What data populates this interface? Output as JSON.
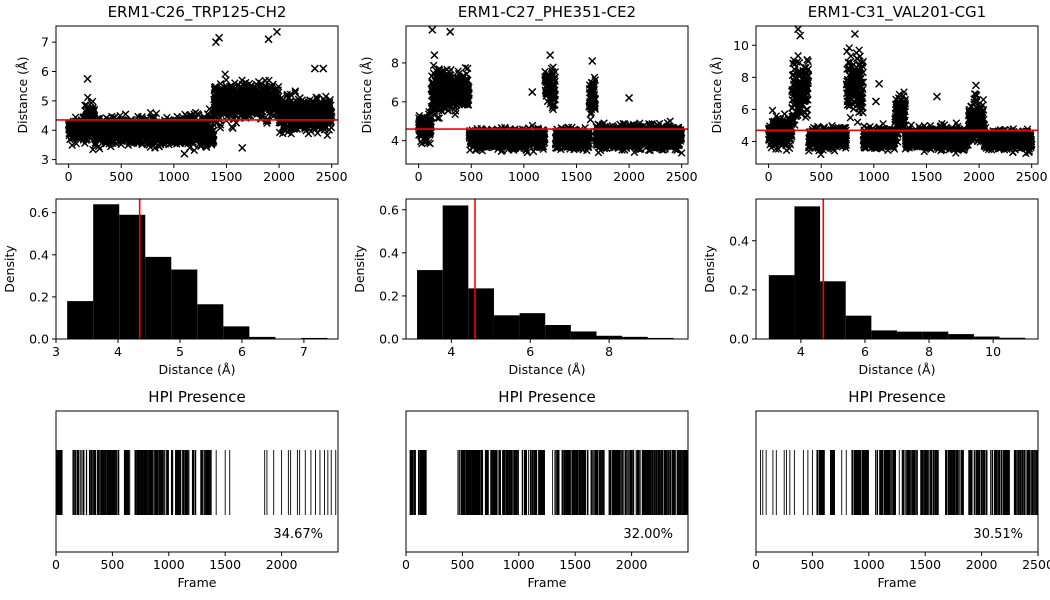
{
  "chart_data": [
    {
      "type": "scatter",
      "title": "ERM1-C26_TRP125-CH2",
      "xlabel": "",
      "ylabel": "Distance (Å)",
      "xlim": [
        -120,
        2560
      ],
      "ylim": [
        2.85,
        7.55
      ],
      "xticks": [
        "0",
        "500",
        "1000",
        "1500",
        "2000",
        "2500"
      ],
      "yticks": [
        "3",
        "4",
        "5",
        "6",
        "7"
      ],
      "marker": "x",
      "marker_color": "#000000",
      "threshold": 4.35,
      "threshold_color": "#ff0000",
      "segments": [
        {
          "x": [
            0,
            150
          ],
          "mean": 4.0,
          "spread": 0.35
        },
        {
          "x": [
            150,
            250
          ],
          "mean": 4.3,
          "spread": 0.6
        },
        {
          "x": [
            250,
            1000
          ],
          "mean": 3.95,
          "spread": 0.4
        },
        {
          "x": [
            1000,
            1380
          ],
          "mean": 4.0,
          "spread": 0.45
        },
        {
          "x": [
            1380,
            1600
          ],
          "mean": 4.9,
          "spread": 0.6
        },
        {
          "x": [
            1600,
            2000
          ],
          "mean": 5.0,
          "spread": 0.55
        },
        {
          "x": [
            2000,
            2500
          ],
          "mean": 4.55,
          "spread": 0.5
        }
      ],
      "highlights": [
        [
          180,
          5.75
        ],
        [
          1400,
          7.0
        ],
        [
          1430,
          7.15
        ],
        [
          1980,
          7.35
        ],
        [
          1900,
          7.1
        ],
        [
          2340,
          6.1
        ],
        [
          2420,
          6.1
        ],
        [
          1650,
          3.4
        ],
        [
          1100,
          3.2
        ]
      ]
    },
    {
      "type": "scatter",
      "title": "ERM1-C27_PHE351-CE2",
      "xlabel": "",
      "ylabel": "Distance (Å)",
      "xlim": [
        -120,
        2560
      ],
      "ylim": [
        2.8,
        9.9
      ],
      "xticks": [
        "0",
        "500",
        "1000",
        "1500",
        "2000",
        "2500"
      ],
      "yticks": [
        "4",
        "6",
        "8"
      ],
      "marker": "x",
      "marker_color": "#000000",
      "threshold": 4.6,
      "threshold_color": "#ff0000",
      "segments": [
        {
          "x": [
            0,
            120
          ],
          "mean": 4.6,
          "spread": 0.6
        },
        {
          "x": [
            120,
            250
          ],
          "mean": 6.5,
          "spread": 1.1
        },
        {
          "x": [
            250,
            480
          ],
          "mean": 6.6,
          "spread": 0.9
        },
        {
          "x": [
            480,
            1200
          ],
          "mean": 4.1,
          "spread": 0.45
        },
        {
          "x": [
            1200,
            1300
          ],
          "mean": 6.8,
          "spread": 1.0
        },
        {
          "x": [
            1300,
            1620
          ],
          "mean": 4.1,
          "spread": 0.5
        },
        {
          "x": [
            1620,
            1680
          ],
          "mean": 6.3,
          "spread": 0.9
        },
        {
          "x": [
            1680,
            2500
          ],
          "mean": 4.2,
          "spread": 0.55
        }
      ],
      "highlights": [
        [
          130,
          9.7
        ],
        [
          300,
          9.6
        ],
        [
          150,
          8.4
        ],
        [
          1250,
          8.4
        ],
        [
          1650,
          8.1
        ],
        [
          2000,
          6.2
        ],
        [
          1080,
          6.5
        ]
      ]
    },
    {
      "type": "scatter",
      "title": "ERM1-C31_VAL201-CG1",
      "xlabel": "",
      "ylabel": "Distance (Å)",
      "xlim": [
        -120,
        2560
      ],
      "ylim": [
        2.6,
        11.2
      ],
      "xticks": [
        "0",
        "500",
        "1000",
        "1500",
        "2000",
        "2500"
      ],
      "yticks": [
        "4",
        "6",
        "8",
        "10"
      ],
      "marker": "x",
      "marker_color": "#000000",
      "threshold": 4.7,
      "threshold_color": "#ff0000",
      "segments": [
        {
          "x": [
            0,
            220
          ],
          "mean": 4.6,
          "spread": 0.9
        },
        {
          "x": [
            220,
            380
          ],
          "mean": 7.2,
          "spread": 1.8
        },
        {
          "x": [
            380,
            740
          ],
          "mean": 4.2,
          "spread": 0.6
        },
        {
          "x": [
            740,
            900
          ],
          "mean": 7.6,
          "spread": 1.6
        },
        {
          "x": [
            900,
            1200
          ],
          "mean": 4.2,
          "spread": 0.6
        },
        {
          "x": [
            1200,
            1300
          ],
          "mean": 5.6,
          "spread": 1.1
        },
        {
          "x": [
            1300,
            1900
          ],
          "mean": 4.2,
          "spread": 0.6
        },
        {
          "x": [
            1900,
            2050
          ],
          "mean": 5.3,
          "spread": 1.1
        },
        {
          "x": [
            2050,
            2500
          ],
          "mean": 4.1,
          "spread": 0.55
        }
      ],
      "highlights": [
        [
          280,
          11.0
        ],
        [
          300,
          10.6
        ],
        [
          820,
          10.7
        ],
        [
          1050,
          7.6
        ],
        [
          1970,
          7.5
        ],
        [
          1600,
          6.8
        ],
        [
          1020,
          6.5
        ]
      ]
    },
    {
      "type": "bar",
      "title": "",
      "xlabel": "Distance (Å)",
      "ylabel": "Density",
      "xlim": [
        3.0,
        7.55
      ],
      "ylim": [
        0,
        0.665
      ],
      "xticks": [
        "3",
        "4",
        "5",
        "6",
        "7"
      ],
      "yticks": [
        "0.0",
        "0.2",
        "0.4",
        "0.6"
      ],
      "bin_edges": [
        3.18,
        3.6,
        4.02,
        4.44,
        4.86,
        5.28,
        5.7,
        6.12,
        6.54,
        6.96,
        7.38
      ],
      "values": [
        0.18,
        0.64,
        0.59,
        0.39,
        0.33,
        0.165,
        0.06,
        0.01,
        0.0,
        0.005
      ],
      "bar_color": "#000000",
      "threshold": 4.35,
      "threshold_color": "#ff0000"
    },
    {
      "type": "bar",
      "title": "",
      "xlabel": "Distance (Å)",
      "ylabel": "Density",
      "xlim": [
        2.85,
        10.0
      ],
      "ylim": [
        0,
        0.65
      ],
      "xticks": [
        "4",
        "6",
        "8"
      ],
      "yticks": [
        "0.0",
        "0.2",
        "0.4",
        "0.6"
      ],
      "bin_edges": [
        3.13,
        3.78,
        4.43,
        5.08,
        5.73,
        6.38,
        7.03,
        7.68,
        8.33,
        8.98,
        9.63
      ],
      "values": [
        0.32,
        0.62,
        0.235,
        0.11,
        0.12,
        0.065,
        0.035,
        0.015,
        0.01,
        0.005
      ],
      "bar_color": "#000000",
      "threshold": 4.6,
      "threshold_color": "#ff0000"
    },
    {
      "type": "bar",
      "title": "",
      "xlabel": "Distance (Å)",
      "ylabel": "Density",
      "xlim": [
        2.6,
        11.4
      ],
      "ylim": [
        0,
        0.57
      ],
      "xticks": [
        "4",
        "6",
        "8",
        "10"
      ],
      "yticks": [
        "0.0",
        "0.2",
        "0.4"
      ],
      "bin_edges": [
        3.0,
        3.8,
        4.6,
        5.4,
        6.2,
        7.0,
        7.8,
        8.6,
        9.4,
        10.2,
        11.0
      ],
      "values": [
        0.26,
        0.54,
        0.235,
        0.095,
        0.035,
        0.03,
        0.03,
        0.02,
        0.01,
        0.005
      ],
      "bar_color": "#000000",
      "threshold": 4.7,
      "threshold_color": "#ff0000"
    },
    {
      "type": "barcode",
      "title": "HPI Presence",
      "xlabel": "Frame",
      "ylabel": "",
      "xlim": [
        0,
        2500
      ],
      "xticks": [
        "0",
        "500",
        "1000",
        "1500",
        "2000"
      ],
      "percent_label": "34.67%",
      "dense_ranges": [
        [
          0,
          60
        ],
        [
          150,
          220
        ],
        [
          230,
          250
        ],
        [
          260,
          560
        ],
        [
          600,
          660
        ],
        [
          700,
          1000
        ],
        [
          1020,
          1180
        ],
        [
          1200,
          1240
        ],
        [
          1280,
          1380
        ]
      ],
      "sparse_lines": [
        1420,
        1500,
        1540,
        1850,
        1870,
        1930,
        2000,
        2060,
        2080,
        2140,
        2160,
        2210,
        2260,
        2300,
        2340,
        2380,
        2410,
        2440,
        2480
      ],
      "color": "#000000"
    },
    {
      "type": "barcode",
      "title": "HPI Presence",
      "xlabel": "Frame",
      "ylabel": "",
      "xlim": [
        0,
        2500
      ],
      "xticks": [
        "0",
        "500",
        "1000",
        "1500",
        "2000"
      ],
      "percent_label": "32.00%",
      "dense_ranges": [
        [
          30,
          90
        ],
        [
          110,
          180
        ],
        [
          460,
          680
        ],
        [
          700,
          1000
        ],
        [
          1030,
          1230
        ],
        [
          1330,
          1360
        ],
        [
          1380,
          1460
        ],
        [
          1470,
          1620
        ],
        [
          1640,
          1760
        ],
        [
          1800,
          2020
        ],
        [
          2040,
          2500
        ]
      ],
      "sparse_lines": [
        60,
        130,
        1300,
        1320
      ],
      "color": "#000000"
    },
    {
      "type": "barcode",
      "title": "HPI Presence",
      "xlabel": "Frame",
      "ylabel": "",
      "xlim": [
        0,
        2500
      ],
      "xticks": [
        "0",
        "500",
        "1000",
        "1500",
        "2000",
        "2500"
      ],
      "percent_label": "30.51%",
      "dense_ranges": [
        [
          540,
          610
        ],
        [
          660,
          700
        ],
        [
          850,
          1000
        ],
        [
          1060,
          1240
        ],
        [
          1290,
          1440
        ],
        [
          1460,
          1620
        ],
        [
          1680,
          1840
        ],
        [
          1880,
          2050
        ],
        [
          2080,
          2250
        ],
        [
          2290,
          2500
        ]
      ],
      "sparse_lines": [
        40,
        60,
        90,
        150,
        180,
        250,
        270,
        300,
        340,
        420,
        460,
        500,
        760,
        800,
        1270
      ],
      "color": "#000000"
    }
  ]
}
